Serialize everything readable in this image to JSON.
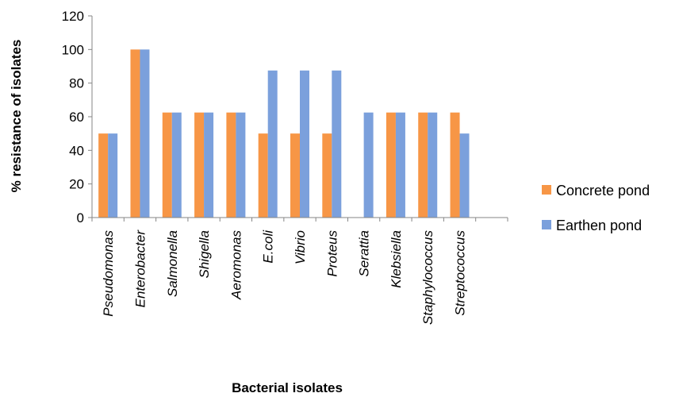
{
  "chart_data": {
    "type": "bar",
    "title": "",
    "xlabel": "Bacterial isolates",
    "ylabel": "% resistance of isolates",
    "ylim": [
      0,
      120
    ],
    "yticks": [
      0,
      20,
      40,
      60,
      80,
      100,
      120
    ],
    "grid": false,
    "legend_position": "right",
    "categories": [
      "Pseudomonas",
      "Enterobacter",
      "Salmonella",
      "Shigella",
      "Aeromonas",
      "E.coli",
      "Vibrio",
      "Proteus",
      "Serattia",
      "Klebsiella",
      "Staphylococcus",
      "Streptococcus"
    ],
    "series": [
      {
        "name": "Concrete pond",
        "color": "#f79646",
        "values": [
          50,
          100,
          62.5,
          62.5,
          62.5,
          50,
          50,
          50,
          0,
          62.5,
          62.5,
          62.5
        ]
      },
      {
        "name": "Earthen pond",
        "color": "#7ba0dc",
        "values": [
          50,
          100,
          62.5,
          62.5,
          62.5,
          87.5,
          87.5,
          87.5,
          62.5,
          62.5,
          62.5,
          50
        ]
      }
    ]
  }
}
